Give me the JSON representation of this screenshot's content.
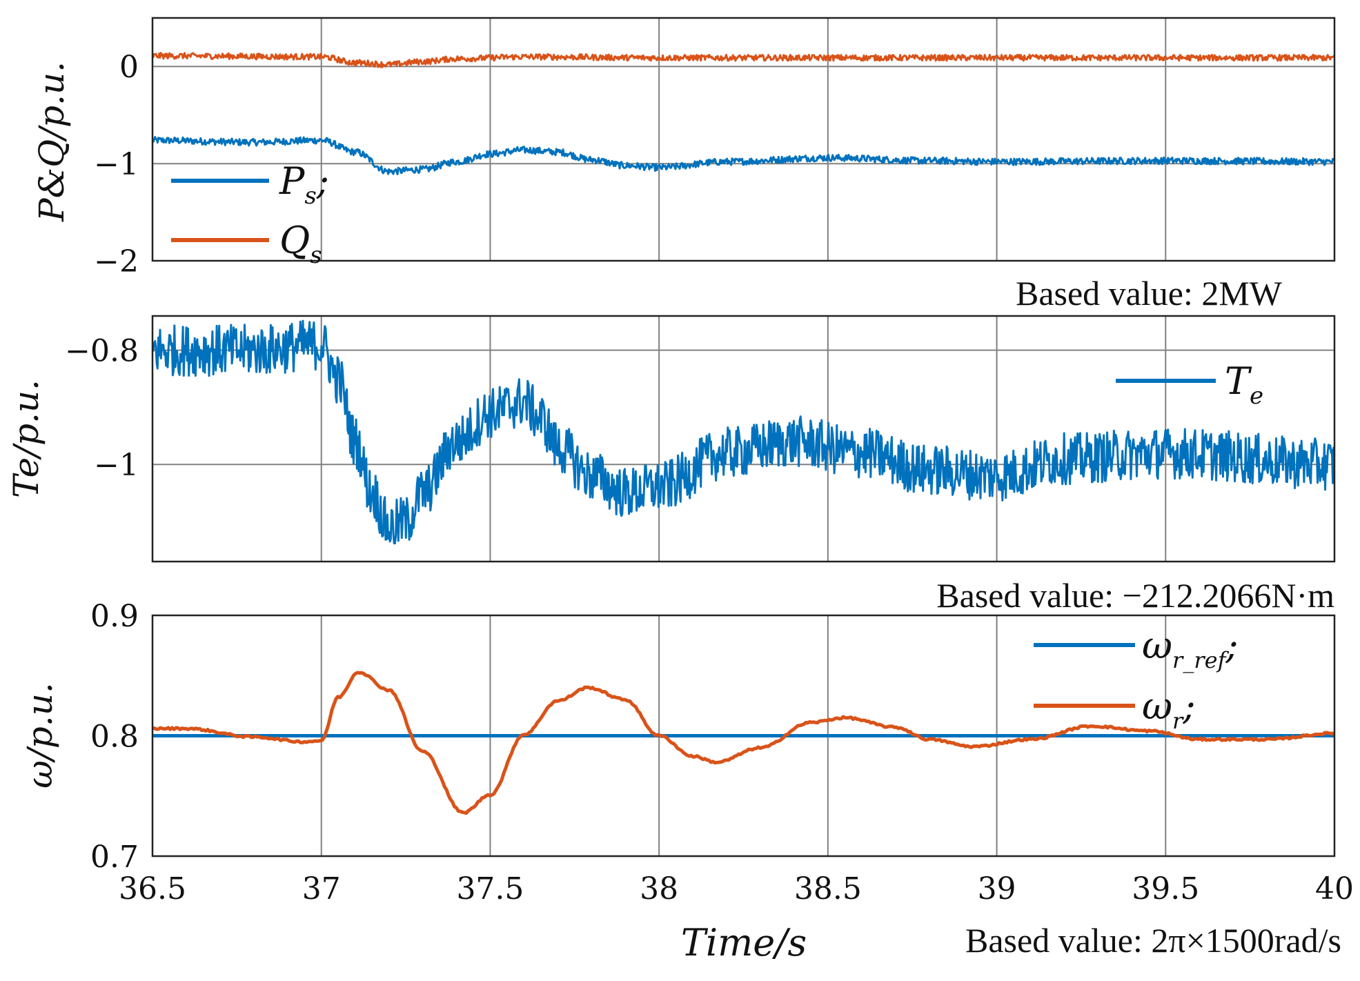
{
  "colors": {
    "blue": "#0072BD",
    "orange": "#D95319",
    "grid": "#808080",
    "axis": "#222222"
  },
  "chart_data": [
    {
      "type": "line",
      "panel": "P&Q",
      "ylabel": "P&Q/p.u.",
      "ylim": [
        -2,
        0.5
      ],
      "yticks": [
        -2,
        -1,
        0
      ],
      "yticklabels": [
        "−2",
        "−1",
        "0"
      ],
      "xlim": [
        36.5,
        40
      ],
      "xticks": [
        36.5,
        37,
        37.5,
        38,
        38.5,
        39,
        39.5,
        40
      ],
      "note": "Based value: 2MW",
      "legend": {
        "position": "bottom-left",
        "entries": [
          {
            "name": "P",
            "sub": "s",
            "suffix": ";"
          },
          {
            "name": "Q",
            "sub": "s",
            "suffix": ""
          }
        ]
      },
      "series": [
        {
          "name": "Ps",
          "color": "#0072BD",
          "noise": 0.035,
          "x": [
            36.5,
            36.8,
            37.0,
            37.1,
            37.2,
            37.3,
            37.4,
            37.5,
            37.6,
            37.7,
            37.8,
            37.9,
            38.0,
            38.2,
            38.5,
            38.8,
            39.0,
            39.5,
            40.0
          ],
          "values": [
            -0.76,
            -0.78,
            -0.76,
            -0.88,
            -1.08,
            -1.06,
            -0.98,
            -0.9,
            -0.86,
            -0.88,
            -0.96,
            -1.02,
            -1.04,
            -0.98,
            -0.94,
            -0.97,
            -0.98,
            -0.97,
            -0.98
          ]
        },
        {
          "name": "Qs",
          "color": "#D95319",
          "noise": 0.03,
          "x": [
            36.5,
            37.0,
            37.1,
            37.2,
            37.3,
            37.4,
            37.6,
            38.0,
            38.5,
            39.0,
            39.5,
            40.0
          ],
          "values": [
            0.11,
            0.1,
            0.04,
            0.02,
            0.05,
            0.08,
            0.1,
            0.09,
            0.09,
            0.09,
            0.09,
            0.09
          ]
        }
      ]
    },
    {
      "type": "line",
      "panel": "Te",
      "ylabel": "Te/p.u.",
      "ylim": [
        -1.17,
        -0.74
      ],
      "yticks": [
        -1,
        -0.8
      ],
      "yticklabels": [
        "−1",
        "−0.8"
      ],
      "xlim": [
        36.5,
        40
      ],
      "xticks": [
        36.5,
        37,
        37.5,
        38,
        38.5,
        39,
        39.5,
        40
      ],
      "note": "Based value: −212.2066N·m",
      "legend": {
        "position": "top-right",
        "entries": [
          {
            "name": "T",
            "sub": "e",
            "suffix": ""
          }
        ]
      },
      "series": [
        {
          "name": "Te",
          "color": "#0072BD",
          "noise": 0.045,
          "x": [
            36.5,
            36.8,
            37.0,
            37.05,
            37.1,
            37.15,
            37.2,
            37.25,
            37.3,
            37.4,
            37.5,
            37.6,
            37.65,
            37.7,
            37.8,
            37.9,
            38.0,
            38.2,
            38.4,
            38.6,
            38.8,
            39.0,
            39.2,
            39.5,
            40.0
          ],
          "values": [
            -0.8,
            -0.8,
            -0.79,
            -0.85,
            -0.96,
            -1.05,
            -1.11,
            -1.1,
            -1.05,
            -0.96,
            -0.91,
            -0.89,
            -0.92,
            -0.97,
            -1.02,
            -1.05,
            -1.04,
            -0.98,
            -0.96,
            -0.98,
            -1.01,
            -1.02,
            -0.99,
            -0.98,
            -1.0
          ]
        }
      ]
    },
    {
      "type": "line",
      "panel": "omega",
      "ylabel": "ω/p.u.",
      "ylim": [
        0.7,
        0.9
      ],
      "yticks": [
        0.7,
        0.8,
        0.9
      ],
      "yticklabels": [
        "0.7",
        "0.8",
        "0.9"
      ],
      "xlim": [
        36.5,
        40
      ],
      "xticks": [
        36.5,
        37,
        37.5,
        38,
        38.5,
        39,
        39.5,
        40
      ],
      "xticklabels": [
        "36.5",
        "37",
        "37.5",
        "38",
        "38.5",
        "39",
        "39.5",
        "40"
      ],
      "xlabel": "Time/s",
      "note": "Based value: 2π×1500rad/s",
      "legend": {
        "position": "top-right",
        "entries": [
          {
            "name": "ω",
            "sub": "r_ref",
            "suffix": ";"
          },
          {
            "name": "ω",
            "sub": "r",
            "suffix": ";"
          }
        ]
      },
      "series": [
        {
          "name": "ωr_ref",
          "color": "#0072BD",
          "noise": 0,
          "x": [
            36.5,
            40.0
          ],
          "values": [
            0.8,
            0.8
          ]
        },
        {
          "name": "ωr",
          "color": "#D95319",
          "noise": 0.0008,
          "x": [
            36.5,
            36.6,
            36.8,
            36.95,
            37.0,
            37.05,
            37.11,
            37.2,
            37.3,
            37.42,
            37.5,
            37.6,
            37.7,
            37.79,
            37.9,
            38.0,
            38.1,
            38.17,
            38.3,
            38.45,
            38.55,
            38.7,
            38.8,
            38.93,
            39.1,
            39.28,
            39.45,
            39.6,
            39.8,
            40.0
          ],
          "values": [
            0.806,
            0.806,
            0.799,
            0.795,
            0.796,
            0.832,
            0.853,
            0.838,
            0.787,
            0.736,
            0.751,
            0.801,
            0.829,
            0.84,
            0.83,
            0.8,
            0.783,
            0.778,
            0.79,
            0.811,
            0.815,
            0.807,
            0.797,
            0.791,
            0.797,
            0.808,
            0.804,
            0.797,
            0.797,
            0.802
          ]
        }
      ]
    }
  ]
}
